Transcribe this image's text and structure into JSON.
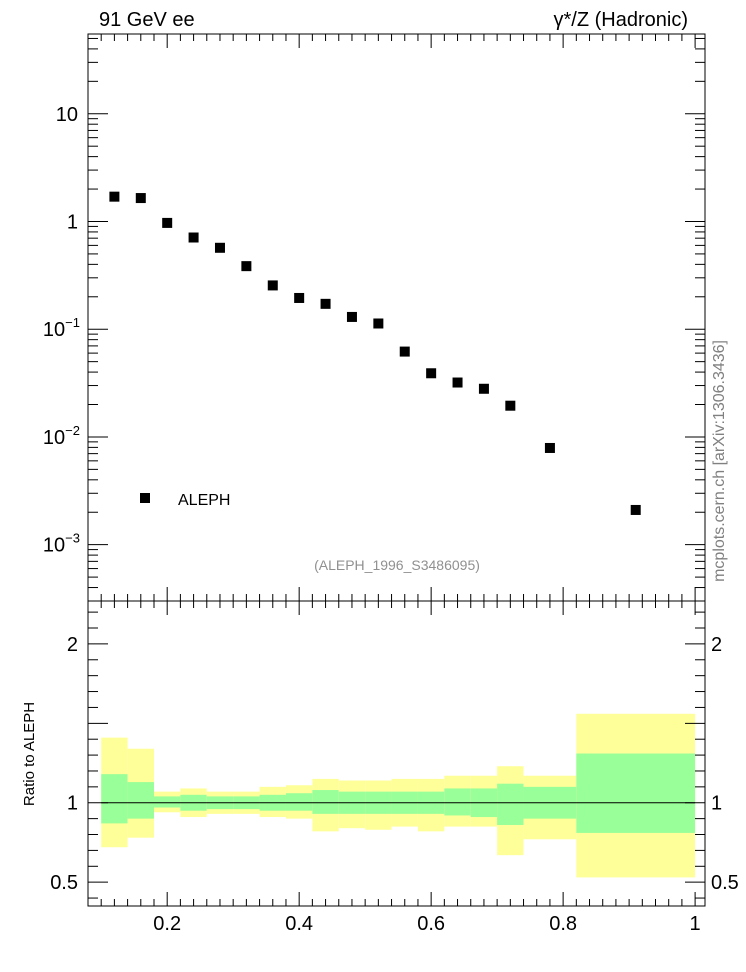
{
  "header": {
    "left_title": "91 GeV ee",
    "right_title": "γ*/Z (Hadronic)",
    "side_label": "mcplots.cern.ch [arXiv:1306.3436]"
  },
  "colors": {
    "band_outer": "#ffff99",
    "band_inner": "#99ff99",
    "marker": "#000000"
  },
  "chart_data": [
    {
      "type": "scatter",
      "yscale": "log",
      "xlim": [
        0.08,
        1.015
      ],
      "ylim": [
        0.0003,
        55
      ],
      "grid": false,
      "legend_position": "bottom-left",
      "series": [
        {
          "name": "ALEPH",
          "x": [
            0.12,
            0.16,
            0.2,
            0.24,
            0.28,
            0.32,
            0.36,
            0.4,
            0.44,
            0.48,
            0.52,
            0.56,
            0.6,
            0.64,
            0.68,
            0.72,
            0.78,
            0.91
          ],
          "y": [
            1.7,
            1.65,
            0.97,
            0.71,
            0.57,
            0.385,
            0.255,
            0.195,
            0.172,
            0.13,
            0.113,
            0.062,
            0.039,
            0.032,
            0.028,
            0.0195,
            0.0079,
            0.0021
          ]
        }
      ],
      "y_ticks": [
        {
          "value": 10,
          "label": "10",
          "exp": ""
        },
        {
          "value": 1,
          "label": "1",
          "exp": ""
        },
        {
          "value": 0.1,
          "label": "10",
          "exp": "−1"
        },
        {
          "value": 0.01,
          "label": "10",
          "exp": "−2"
        },
        {
          "value": 0.001,
          "label": "10",
          "exp": "−3"
        }
      ],
      "analysis_label": "(ALEPH_1996_S3486095)"
    },
    {
      "type": "area",
      "ylabel": "Ratio to ALEPH",
      "xlim": [
        0.08,
        1.015
      ],
      "ylim": [
        0.35,
        2.27
      ],
      "reference_line": 1,
      "bins": [
        {
          "x0": 0.1,
          "x1": 0.14,
          "outer": [
            0.72,
            1.41
          ],
          "inner": [
            0.87,
            1.18
          ]
        },
        {
          "x0": 0.14,
          "x1": 0.18,
          "outer": [
            0.78,
            1.34
          ],
          "inner": [
            0.9,
            1.13
          ]
        },
        {
          "x0": 0.18,
          "x1": 0.22,
          "outer": [
            0.94,
            1.07
          ],
          "inner": [
            0.97,
            1.04
          ]
        },
        {
          "x0": 0.22,
          "x1": 0.26,
          "outer": [
            0.91,
            1.09
          ],
          "inner": [
            0.95,
            1.05
          ]
        },
        {
          "x0": 0.26,
          "x1": 0.3,
          "outer": [
            0.93,
            1.07
          ],
          "inner": [
            0.96,
            1.04
          ]
        },
        {
          "x0": 0.3,
          "x1": 0.34,
          "outer": [
            0.93,
            1.07
          ],
          "inner": [
            0.96,
            1.04
          ]
        },
        {
          "x0": 0.34,
          "x1": 0.38,
          "outer": [
            0.91,
            1.1
          ],
          "inner": [
            0.95,
            1.05
          ]
        },
        {
          "x0": 0.38,
          "x1": 0.42,
          "outer": [
            0.9,
            1.11
          ],
          "inner": [
            0.95,
            1.06
          ]
        },
        {
          "x0": 0.42,
          "x1": 0.46,
          "outer": [
            0.82,
            1.15
          ],
          "inner": [
            0.93,
            1.08
          ]
        },
        {
          "x0": 0.46,
          "x1": 0.5,
          "outer": [
            0.84,
            1.14
          ],
          "inner": [
            0.93,
            1.07
          ]
        },
        {
          "x0": 0.5,
          "x1": 0.54,
          "outer": [
            0.83,
            1.14
          ],
          "inner": [
            0.93,
            1.07
          ]
        },
        {
          "x0": 0.54,
          "x1": 0.58,
          "outer": [
            0.85,
            1.15
          ],
          "inner": [
            0.93,
            1.07
          ]
        },
        {
          "x0": 0.58,
          "x1": 0.62,
          "outer": [
            0.82,
            1.15
          ],
          "inner": [
            0.93,
            1.07
          ]
        },
        {
          "x0": 0.62,
          "x1": 0.66,
          "outer": [
            0.85,
            1.17
          ],
          "inner": [
            0.92,
            1.09
          ]
        },
        {
          "x0": 0.66,
          "x1": 0.7,
          "outer": [
            0.85,
            1.17
          ],
          "inner": [
            0.91,
            1.09
          ]
        },
        {
          "x0": 0.7,
          "x1": 0.74,
          "outer": [
            0.67,
            1.23
          ],
          "inner": [
            0.86,
            1.12
          ]
        },
        {
          "x0": 0.74,
          "x1": 0.82,
          "outer": [
            0.77,
            1.17
          ],
          "inner": [
            0.9,
            1.1
          ]
        },
        {
          "x0": 0.82,
          "x1": 1.0,
          "outer": [
            0.53,
            1.56
          ],
          "inner": [
            0.81,
            1.31
          ]
        }
      ],
      "y_ticks": [
        {
          "value": 2,
          "label": "2"
        },
        {
          "value": 1,
          "label": "1"
        },
        {
          "value": 0.5,
          "label": "0.5"
        }
      ],
      "x_ticks": [
        {
          "value": 0.2,
          "label": "0.2"
        },
        {
          "value": 0.4,
          "label": "0.4"
        },
        {
          "value": 0.6,
          "label": "0.6"
        },
        {
          "value": 0.8,
          "label": "0.8"
        },
        {
          "value": 1,
          "label": "1"
        }
      ]
    }
  ]
}
